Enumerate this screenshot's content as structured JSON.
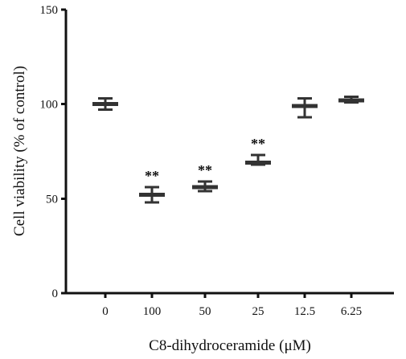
{
  "chart_data": {
    "type": "box",
    "title": "",
    "xlabel": "C8-dihydroceramide (μM)",
    "ylabel": "Cell viability (% of control)",
    "ylim": [
      0,
      150
    ],
    "yticks": [
      0,
      50,
      100,
      150
    ],
    "categories": [
      "0",
      "100",
      "50",
      "25",
      "12.5",
      "6.25"
    ],
    "series": [
      {
        "values": [
          100,
          52,
          56,
          69,
          99,
          102
        ],
        "error_low": [
          97,
          48,
          54,
          68,
          93,
          101
        ],
        "error_high": [
          103,
          56,
          59,
          73,
          103,
          104
        ]
      }
    ],
    "annotations": [
      {
        "category": "100",
        "text": "**"
      },
      {
        "category": "50",
        "text": "**"
      },
      {
        "category": "25",
        "text": "**"
      }
    ],
    "grid": false,
    "legend": "none",
    "colors": {
      "axis": "#111111",
      "marks": "#333333"
    }
  }
}
